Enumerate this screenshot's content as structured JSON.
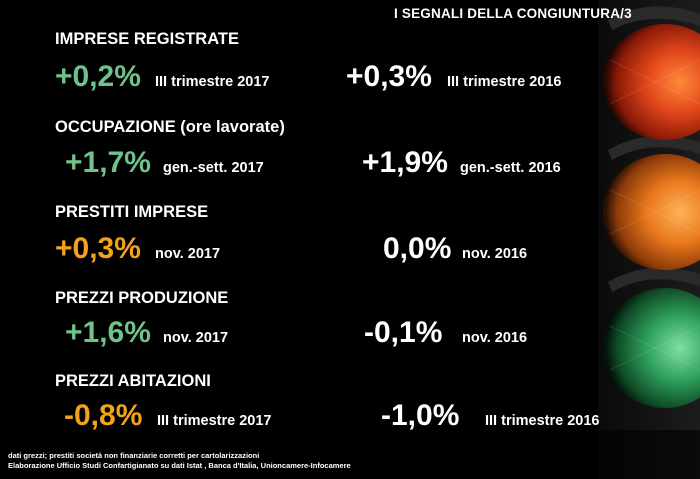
{
  "title": "I SEGNALI DELLA CONGIUNTURA/3",
  "colors": {
    "background": "#000000",
    "text": "#ffffff",
    "green_value": "#6fc38a",
    "orange_value": "#f3a21b",
    "light_red": "#d43a12",
    "light_amber": "#e77a14",
    "light_green": "#2f9a55"
  },
  "indicators": [
    {
      "heading": "IMPRESE REGISTRATE",
      "current_value": "+0,2%",
      "current_period": "III trimestre  2017",
      "current_color": "green",
      "previous_value": "+0,3%",
      "previous_period": "III trimestre  2016"
    },
    {
      "heading": "OCCUPAZIONE (ore lavorate)",
      "current_value": "+1,7%",
      "current_period": "gen.-sett. 2017",
      "current_color": "green",
      "previous_value": "+1,9%",
      "previous_period": "gen.-sett. 2016"
    },
    {
      "heading": "PRESTITI IMPRESE",
      "current_value": "+0,3%",
      "current_period": "nov. 2017",
      "current_color": "orange",
      "previous_value": "0,0%",
      "previous_period": "nov. 2016"
    },
    {
      "heading": "PREZZI PRODUZIONE",
      "current_value": "+1,6%",
      "current_period": "nov. 2017",
      "current_color": "green",
      "previous_value": "-0,1%",
      "previous_period": "nov. 2016"
    },
    {
      "heading": "PREZZI ABITAZIONI",
      "current_value": "-0,8%",
      "current_period": "III trimestre  2017",
      "current_color": "orange",
      "previous_value": "-1,0%",
      "previous_period": "III trimestre 2016"
    }
  ],
  "footnotes": {
    "line1": "dati grezzi; prestiti società non finanziarie corretti per cartolarizzazioni",
    "line2": "Elaborazione Ufficio Studi Confartigianato su dati Istat , Banca d'Italia, Unioncamere-Infocamere"
  },
  "traffic_light": {
    "icon": "traffic-light-icon",
    "lamps": [
      "red",
      "amber",
      "green"
    ]
  }
}
